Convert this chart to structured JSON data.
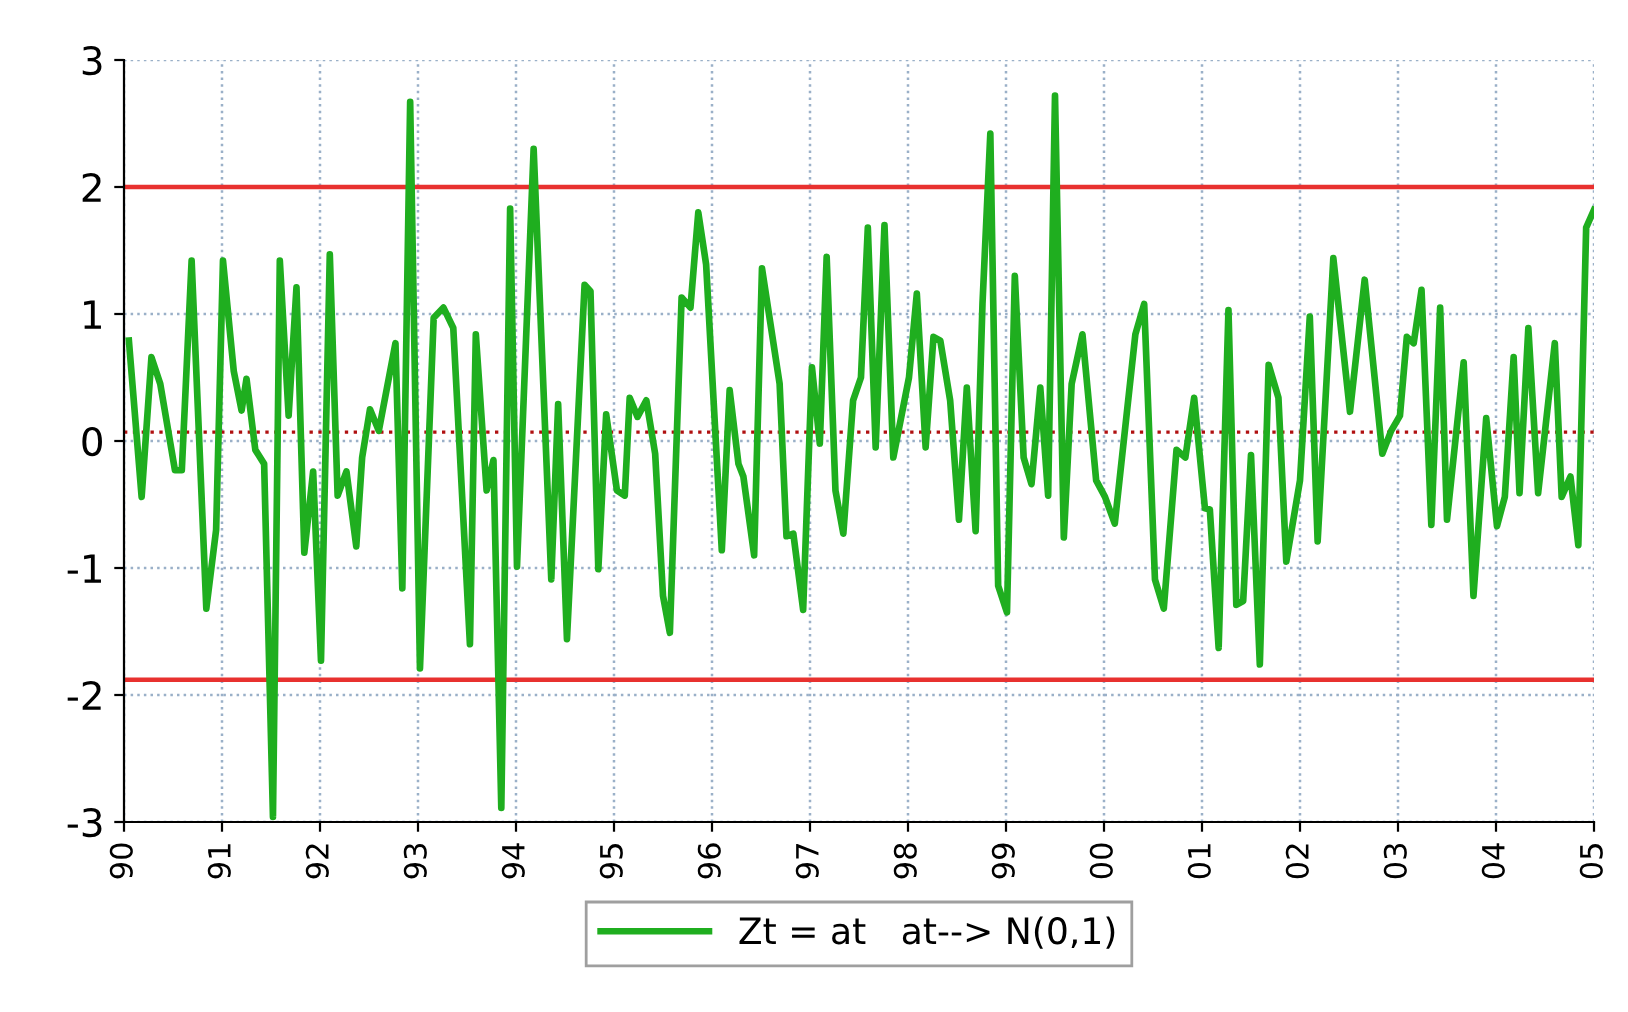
{
  "chart_data": {
    "type": "line",
    "x": [
      1990.05,
      1990.18,
      1990.28,
      1990.37,
      1990.52,
      1990.59,
      1990.69,
      1990.84,
      1990.94,
      1991.01,
      1991.12,
      1991.2,
      1991.25,
      1991.34,
      1991.43,
      1991.52,
      1991.59,
      1991.68,
      1991.76,
      1991.84,
      1991.93,
      1992.01,
      1992.1,
      1992.18,
      1992.27,
      1992.37,
      1992.43,
      1992.51,
      1992.6,
      1992.77,
      1992.84,
      1992.92,
      1993.02,
      1993.16,
      1993.26,
      1993.36,
      1993.53,
      1993.59,
      1993.7,
      1993.77,
      1993.85,
      1993.94,
      1994.01,
      1994.18,
      1994.36,
      1994.43,
      1994.52,
      1994.7,
      1994.76,
      1994.84,
      1994.92,
      1995.03,
      1995.11,
      1995.16,
      1995.24,
      1995.33,
      1995.42,
      1995.5,
      1995.57,
      1995.69,
      1995.78,
      1995.86,
      1995.94,
      1996.1,
      1996.18,
      1996.27,
      1996.32,
      1996.43,
      1996.51,
      1996.69,
      1996.76,
      1996.83,
      1996.93,
      1997.02,
      1997.1,
      1997.17,
      1997.26,
      1997.34,
      1997.44,
      1997.52,
      1997.59,
      1997.67,
      1997.76,
      1997.85,
      1998.01,
      1998.09,
      1998.18,
      1998.26,
      1998.33,
      1998.43,
      1998.52,
      1998.6,
      1998.69,
      1998.76,
      1998.84,
      1998.92,
      1999.01,
      1999.09,
      1999.18,
      1999.26,
      1999.35,
      1999.43,
      1999.5,
      1999.59,
      1999.67,
      1999.78,
      1999.92,
      2000.01,
      2000.11,
      2000.32,
      2000.41,
      2000.52,
      2000.61,
      2000.74,
      2000.83,
      2000.92,
      2001.03,
      2001.08,
      2001.17,
      2001.27,
      2001.35,
      2001.42,
      2001.5,
      2001.59,
      2001.68,
      2001.78,
      2001.86,
      2002.0,
      2002.1,
      2002.18,
      2002.34,
      2002.51,
      2002.66,
      2002.84,
      2002.93,
      2003.02,
      2003.09,
      2003.16,
      2003.24,
      2003.34,
      2003.43,
      2003.5,
      2003.67,
      2003.77,
      2003.9,
      2004.01,
      2004.09,
      2004.18,
      2004.24,
      2004.33,
      2004.43,
      2004.6,
      2004.67,
      2004.76,
      2004.84,
      2004.92,
      2005.0
    ],
    "series": [
      {
        "name": "Zt = at   at--> N(0,1)",
        "color": "#1fae1f",
        "values": [
          0.79,
          -0.44,
          0.66,
          0.45,
          -0.23,
          -0.23,
          1.42,
          -1.32,
          -0.7,
          1.42,
          0.55,
          0.24,
          0.49,
          -0.07,
          -0.18,
          -2.96,
          1.42,
          0.2,
          1.21,
          -0.88,
          -0.24,
          -1.73,
          1.47,
          -0.43,
          -0.24,
          -0.83,
          -0.13,
          0.25,
          0.08,
          0.77,
          -1.16,
          2.67,
          -1.79,
          0.97,
          1.05,
          0.89,
          -1.6,
          0.84,
          -0.39,
          -0.15,
          -2.89,
          1.83,
          -0.99,
          2.3,
          -1.09,
          0.29,
          -1.56,
          1.23,
          1.18,
          -1.01,
          0.21,
          -0.39,
          -0.43,
          0.34,
          0.19,
          0.32,
          -0.1,
          -1.22,
          -1.51,
          1.13,
          1.05,
          1.8,
          1.39,
          -0.86,
          0.4,
          -0.18,
          -0.28,
          -0.9,
          1.36,
          0.45,
          -0.75,
          -0.73,
          -1.33,
          0.58,
          -0.02,
          1.45,
          -0.39,
          -0.73,
          0.32,
          0.5,
          1.68,
          -0.05,
          1.7,
          -0.13,
          0.5,
          1.16,
          -0.05,
          0.82,
          0.79,
          0.32,
          -0.62,
          0.42,
          -0.71,
          1.08,
          2.42,
          -1.14,
          -1.35,
          1.3,
          -0.13,
          -0.34,
          0.42,
          -0.43,
          2.72,
          -0.76,
          0.45,
          0.84,
          -0.31,
          -0.44,
          -0.65,
          0.84,
          1.08,
          -1.09,
          -1.32,
          -0.07,
          -0.13,
          0.34,
          -0.53,
          -0.54,
          -1.63,
          1.03,
          -1.29,
          -1.26,
          -0.11,
          -1.76,
          0.6,
          0.34,
          -0.95,
          -0.31,
          0.98,
          -0.79,
          1.44,
          0.23,
          1.27,
          -0.1,
          0.08,
          0.2,
          0.82,
          0.77,
          1.19,
          -0.66,
          1.05,
          -0.62,
          0.62,
          -1.22,
          0.18,
          -0.67,
          -0.44,
          0.66,
          -0.41,
          0.89,
          -0.41,
          0.77,
          -0.44,
          -0.28,
          -0.82,
          1.68,
          1.82
        ]
      }
    ],
    "xlim": [
      1990,
      2005
    ],
    "xticks": [
      {
        "value": 1990,
        "label": "90"
      },
      {
        "value": 1991,
        "label": "91"
      },
      {
        "value": 1992,
        "label": "92"
      },
      {
        "value": 1993,
        "label": "93"
      },
      {
        "value": 1994,
        "label": "94"
      },
      {
        "value": 1995,
        "label": "95"
      },
      {
        "value": 1996,
        "label": "96"
      },
      {
        "value": 1997,
        "label": "97"
      },
      {
        "value": 1998,
        "label": "98"
      },
      {
        "value": 1999,
        "label": "99"
      },
      {
        "value": 2000,
        "label": "00"
      },
      {
        "value": 2001,
        "label": "01"
      },
      {
        "value": 2002,
        "label": "02"
      },
      {
        "value": 2003,
        "label": "03"
      },
      {
        "value": 2004,
        "label": "04"
      },
      {
        "value": 2005,
        "label": "05"
      }
    ],
    "ylim": [
      -3,
      3
    ],
    "yticks": [
      -3,
      -2,
      -1,
      0,
      1,
      2,
      3
    ],
    "ref_lines": [
      {
        "axis": "y",
        "value": 2.0,
        "color": "#e8312f",
        "line_style": "solid"
      },
      {
        "axis": "y",
        "value": -1.88,
        "color": "#e8312f",
        "line_style": "solid"
      },
      {
        "axis": "y",
        "value": 0.07,
        "color": "#b01010",
        "line_style": "dotted"
      }
    ],
    "grid": true,
    "legend": "bottom",
    "line_style": "solid",
    "marker": "none"
  }
}
